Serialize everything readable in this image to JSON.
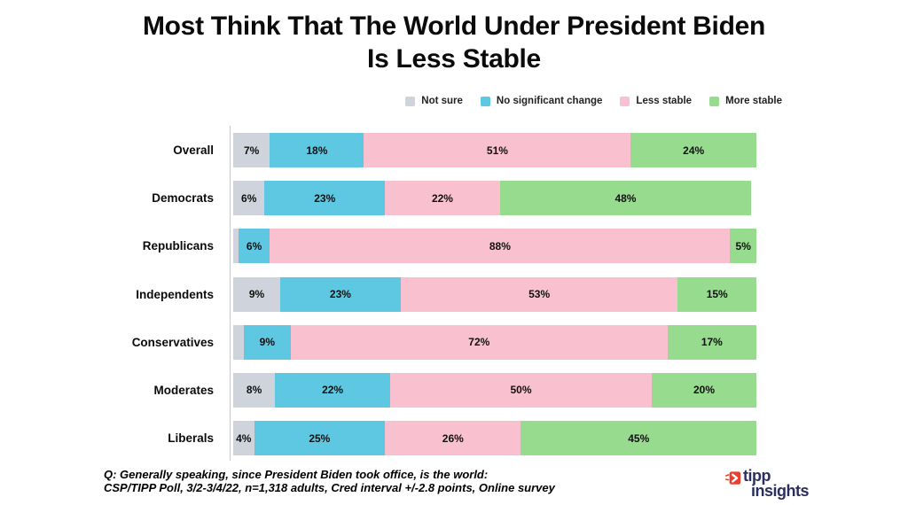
{
  "title": {
    "line1": "Most Think That The World Under President Biden",
    "line2": "Is Less Stable"
  },
  "chart_data": {
    "type": "bar",
    "stacked": true,
    "orientation": "horizontal",
    "title": "Most Think That The World Under President Biden Is Less Stable",
    "xlim": [
      0,
      100
    ],
    "grid": false,
    "legend_position": "top-right",
    "categories": [
      "Overall",
      "Democrats",
      "Republicans",
      "Independents",
      "Conservatives",
      "Moderates",
      "Liberals"
    ],
    "series": [
      {
        "name": "Not sure",
        "color": "#ced3dc",
        "values": [
          7,
          6,
          1,
          9,
          2,
          8,
          4
        ],
        "labels": [
          "7%",
          "6%",
          "",
          "9%",
          "",
          "8%",
          "4%"
        ]
      },
      {
        "name": "No significant change",
        "color": "#5ec7e2",
        "values": [
          18,
          23,
          6,
          23,
          9,
          22,
          25
        ],
        "labels": [
          "18%",
          "23%",
          "6%",
          "23%",
          "9%",
          "22%",
          "25%"
        ]
      },
      {
        "name": "Less stable",
        "color": "#f9c1d0",
        "values": [
          51,
          22,
          88,
          53,
          72,
          50,
          26
        ],
        "labels": [
          "51%",
          "22%",
          "88%",
          "53%",
          "72%",
          "50%",
          "26%"
        ]
      },
      {
        "name": "More stable",
        "color": "#97db8e",
        "values": [
          24,
          48,
          5,
          15,
          17,
          20,
          45
        ],
        "labels": [
          "24%",
          "48%",
          "5%",
          "15%",
          "17%",
          "20%",
          "45%"
        ]
      }
    ]
  },
  "footer": {
    "question": "Q:  Generally speaking, since President Biden took office, is the world:",
    "source": "CSP/TIPP Poll, 3/2-3/4/22, n=1,318 adults, Cred interval +/-2.8 points, Online survey"
  },
  "logo": {
    "line1": "tipp",
    "line2": "insights",
    "text_color": "#2b2f5f",
    "icon_color": "#e8402e"
  }
}
